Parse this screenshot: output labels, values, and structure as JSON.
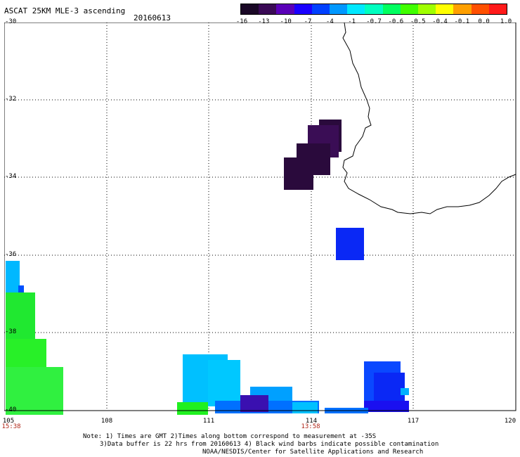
{
  "header": {
    "title": "ASCAT 25KM MLE-3 ascending",
    "date": "20160613"
  },
  "legend": {
    "labels": [
      "-16",
      "-13",
      "-10",
      "-7",
      "-4",
      "-1",
      "-0.7",
      "-0.6",
      "-0.5",
      "-0.4",
      "-0.1",
      "0.0",
      "1.0"
    ],
    "colors": [
      "#1a0826",
      "#3a0a55",
      "#5a00b8",
      "#1a00ff",
      "#0040ff",
      "#0098ff",
      "#00e8ff",
      "#00ffc0",
      "#00ff60",
      "#40ff00",
      "#a0ff00",
      "#ffff00",
      "#ffa000",
      "#ff5000",
      "#ff1a1a"
    ]
  },
  "axes": {
    "lat_labels": [
      "-30",
      "-32",
      "-34",
      "-36",
      "-38",
      "-40"
    ],
    "lon_labels": [
      "105",
      "108",
      "111",
      "114",
      "117",
      "120"
    ],
    "time_labels": [
      "15:38",
      "13:58"
    ]
  },
  "notes": {
    "line1": "Note: 1) Times are GMT 2)Times along bottom correspond to measurement at -35S",
    "line2": "3)Data buffer is 22 hrs from 20160613 4) Black wind barbs indicate possible contamination",
    "line3": "NOAA/NESDIS/Center for Satellite Applications and Research"
  },
  "colors": {
    "dark_purple": "#2a0a3c",
    "blue": "#0a28f5",
    "light_blue": "#00c8ff",
    "green": "#20f020"
  }
}
